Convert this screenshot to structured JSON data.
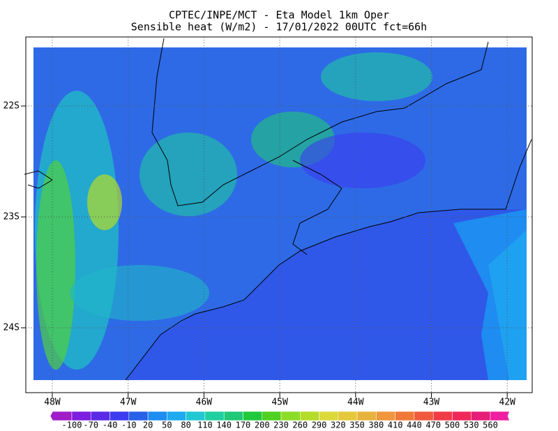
{
  "title": [
    "CPTEC/INPE/MCT -  Eta Model 1km Oper",
    "Sensible heat (W/m2) - 17/01/2022 00UTC fct=66h"
  ],
  "lat_labels": [
    "22S",
    "23S",
    "24S"
  ],
  "lon_labels": [
    "48W",
    "47W",
    "46W",
    "45W",
    "44W",
    "43W",
    "42W"
  ],
  "colorbar": {
    "ticks": [
      -100,
      -70,
      -40,
      -10,
      20,
      50,
      80,
      110,
      140,
      170,
      200,
      230,
      260,
      290,
      320,
      350,
      380,
      410,
      440,
      470,
      500,
      530,
      560
    ],
    "colors": [
      "#a01ec8",
      "#7d1ee0",
      "#5a2ae6",
      "#3c3cf0",
      "#2860e8",
      "#1e8cf0",
      "#1eaaf0",
      "#20c8d2",
      "#20d0a0",
      "#20c878",
      "#20c83c",
      "#50d020",
      "#8cdc28",
      "#b4dc28",
      "#dcd83c",
      "#e6c83c",
      "#e6b43c",
      "#f0963c",
      "#f07838",
      "#f05a3c",
      "#f03c46",
      "#f0285a",
      "#e61e78",
      "#f01ea0"
    ]
  }
}
